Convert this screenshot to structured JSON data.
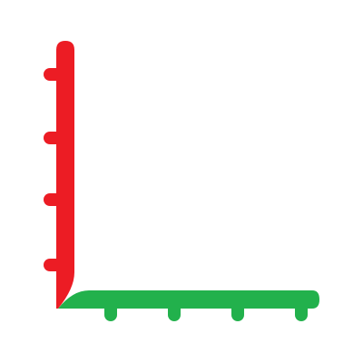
{
  "icon": {
    "name": "axes-icon",
    "y_axis_color": "#EC1C24",
    "x_axis_color": "#22B14C",
    "y_tick_count": 4,
    "x_tick_count": 4
  }
}
